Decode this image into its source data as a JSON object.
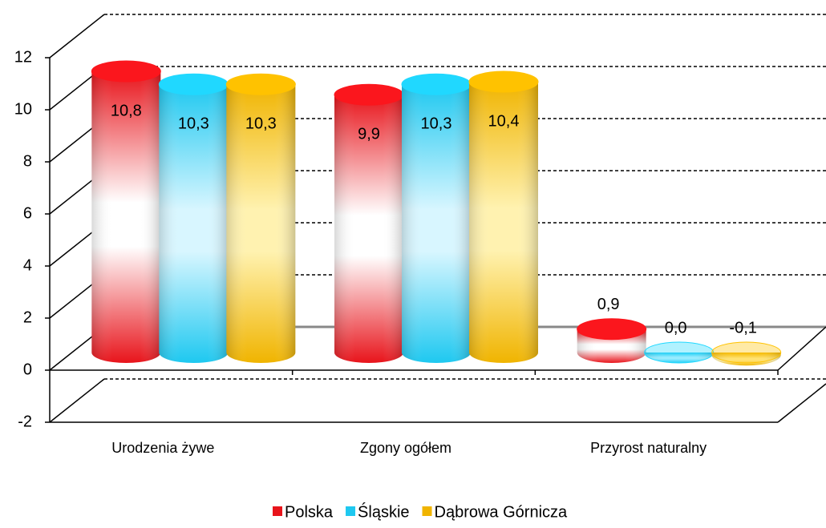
{
  "chart_data": {
    "type": "bar3d",
    "categories": [
      "Urodzenia żywe",
      "Zgony ogółem",
      "Przyrost naturalny"
    ],
    "series": [
      {
        "name": "Polska",
        "color": "#e8141b",
        "values": [
          10.8,
          9.9,
          0.9
        ],
        "value_labels": [
          "10,8",
          "9,9",
          "0,9"
        ]
      },
      {
        "name": "Śląskie",
        "color": "#1ec8f0",
        "values": [
          10.3,
          10.3,
          0.0
        ],
        "value_labels": [
          "10,3",
          "10,3",
          "0,0"
        ]
      },
      {
        "name": "Dąbrowa Górnicza",
        "color": "#f0b400",
        "values": [
          10.3,
          10.4,
          -0.1
        ],
        "value_labels": [
          "10,3",
          "10,4",
          "-0,1"
        ]
      }
    ],
    "ylim": [
      -2,
      12
    ],
    "yticks": [
      -2,
      0,
      2,
      4,
      6,
      8,
      10,
      12
    ],
    "grid": true,
    "legend": "bottom"
  }
}
